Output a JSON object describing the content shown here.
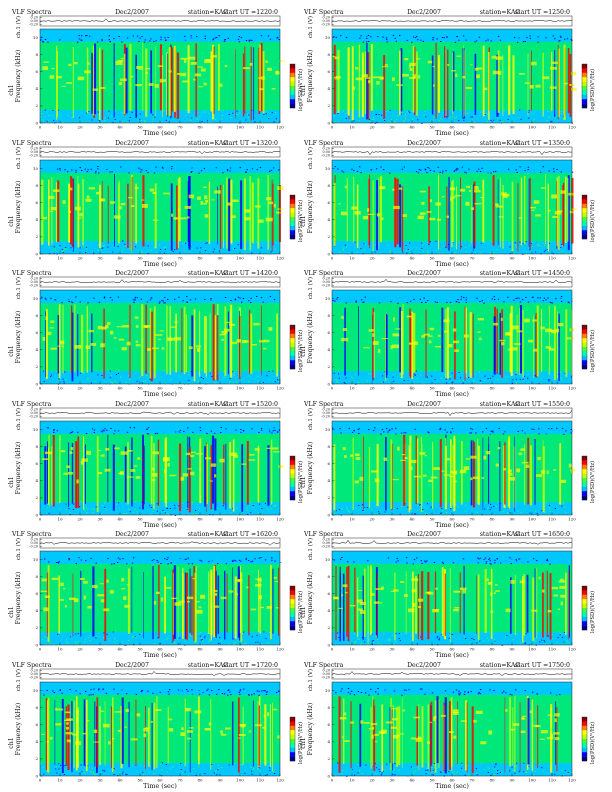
{
  "chart_data": [
    {
      "type": "heatmap",
      "panel_label": "VLF Spectra",
      "date": "Dec2/2007",
      "station": "station=KAG",
      "start_ut": "start UT =1220:0",
      "ch_label": "ch.1 (V)",
      "ch_yticks": [
        "0.20",
        "0.00",
        "-0.20"
      ],
      "ylabel": "Frequency (kHz)",
      "ylabel_prefix": "ch1",
      "yticks": [
        "0",
        "2",
        "4",
        "6",
        "8",
        "10"
      ],
      "ylim": [
        0,
        11
      ],
      "xlabel": "Time (sec)",
      "xticks": [
        "0",
        "10",
        "20",
        "30",
        "40",
        "50",
        "60",
        "70",
        "80",
        "90",
        "100",
        "110",
        "120"
      ],
      "xlim": [
        0,
        120
      ],
      "colorbar_label": "log(PSD)(V²/Hz)"
    },
    {
      "type": "heatmap",
      "panel_label": "VLF Spectra",
      "date": "Dec2/2007",
      "station": "station=KAG",
      "start_ut": "start UT =1250:0",
      "ch_label": "ch.1 (V)",
      "ch_yticks": [
        "0.20",
        "0.00",
        "-0.20"
      ],
      "ylabel": "Frequency (kHz)",
      "ylabel_prefix": "ch1",
      "yticks": [
        "0",
        "2",
        "4",
        "6",
        "8",
        "10"
      ],
      "ylim": [
        0,
        11
      ],
      "xlabel": "Time (sec)",
      "xticks": [
        "0",
        "10",
        "20",
        "30",
        "40",
        "50",
        "60",
        "70",
        "80",
        "90",
        "100",
        "110",
        "120"
      ],
      "xlim": [
        0,
        120
      ],
      "colorbar_label": "log(PSD)(V²/Hz)"
    },
    {
      "type": "heatmap",
      "panel_label": "VLF Spectra",
      "date": "Dec2/2007",
      "station": "station=KAG",
      "start_ut": "start UT =1320:0",
      "ch_label": "ch.1 (V)",
      "ch_yticks": [
        "0.20",
        "0.00",
        "-0.20"
      ],
      "ylabel": "Frequency (kHz)",
      "ylabel_prefix": "ch1",
      "yticks": [
        "0",
        "2",
        "4",
        "6",
        "8",
        "10"
      ],
      "ylim": [
        0,
        11
      ],
      "xlabel": "Time (sec)",
      "xticks": [
        "0",
        "10",
        "20",
        "30",
        "40",
        "50",
        "60",
        "70",
        "80",
        "90",
        "100",
        "110",
        "120"
      ],
      "xlim": [
        0,
        120
      ],
      "colorbar_label": "log(PSD)(V²/Hz)"
    },
    {
      "type": "heatmap",
      "panel_label": "VLF Spectra",
      "date": "Dec2/2007",
      "station": "station=KAG",
      "start_ut": "start UT =1350:0",
      "ch_label": "ch.1 (V)",
      "ch_yticks": [
        "0.20",
        "0.00",
        "-0.20"
      ],
      "ylabel": "Frequency (kHz)",
      "ylabel_prefix": "ch1",
      "yticks": [
        "0",
        "2",
        "4",
        "6",
        "8",
        "10"
      ],
      "ylim": [
        0,
        11
      ],
      "xlabel": "Time (sec)",
      "xticks": [
        "0",
        "10",
        "20",
        "30",
        "40",
        "50",
        "60",
        "70",
        "80",
        "90",
        "100",
        "110",
        "120"
      ],
      "xlim": [
        0,
        120
      ],
      "colorbar_label": "log(PSD)(V²/Hz)"
    },
    {
      "type": "heatmap",
      "panel_label": "VLF Spectra",
      "date": "Dec2/2007",
      "station": "station=KAG",
      "start_ut": "start UT =1420:0",
      "ch_label": "ch.1 (V)",
      "ch_yticks": [
        "0.20",
        "0.00",
        "-0.20"
      ],
      "ylabel": "Frequency (kHz)",
      "ylabel_prefix": "ch1",
      "yticks": [
        "0",
        "2",
        "4",
        "6",
        "8",
        "10"
      ],
      "ylim": [
        0,
        11
      ],
      "xlabel": "Time (sec)",
      "xticks": [
        "0",
        "10",
        "20",
        "30",
        "40",
        "50",
        "60",
        "70",
        "80",
        "90",
        "100",
        "110",
        "120"
      ],
      "xlim": [
        0,
        120
      ],
      "colorbar_label": "log(PSD)(V²/Hz)"
    },
    {
      "type": "heatmap",
      "panel_label": "VLF Spectra",
      "date": "Dec2/2007",
      "station": "station=KAG",
      "start_ut": "start UT =1450:0",
      "ch_label": "ch.1 (V)",
      "ch_yticks": [
        "0.20",
        "0.00",
        "-0.20"
      ],
      "ylabel": "Frequency (kHz)",
      "ylabel_prefix": "ch1",
      "yticks": [
        "0",
        "2",
        "4",
        "6",
        "8",
        "10"
      ],
      "ylim": [
        0,
        11
      ],
      "xlabel": "Time (sec)",
      "xticks": [
        "0",
        "10",
        "20",
        "30",
        "40",
        "50",
        "60",
        "70",
        "80",
        "90",
        "100",
        "110",
        "120"
      ],
      "xlim": [
        0,
        120
      ],
      "colorbar_label": "log(PSD)(V²/Hz)"
    },
    {
      "type": "heatmap",
      "panel_label": "VLF Spectra",
      "date": "Dec2/2007",
      "station": "station=KAG",
      "start_ut": "start UT =1520:0",
      "ch_label": "ch.1 (V)",
      "ch_yticks": [
        "0.20",
        "0.00",
        "-0.20"
      ],
      "ylabel": "Frequency (kHz)",
      "ylabel_prefix": "ch1",
      "yticks": [
        "0",
        "2",
        "4",
        "6",
        "8",
        "10"
      ],
      "ylim": [
        0,
        11
      ],
      "xlabel": "Time (sec)",
      "xticks": [
        "0",
        "10",
        "20",
        "30",
        "40",
        "50",
        "60",
        "70",
        "80",
        "90",
        "100",
        "110",
        "120"
      ],
      "xlim": [
        0,
        120
      ],
      "colorbar_label": "log(PSD)(V²/Hz)"
    },
    {
      "type": "heatmap",
      "panel_label": "VLF Spectra",
      "date": "Dec2/2007",
      "station": "station=KAG",
      "start_ut": "start UT =1550:0",
      "ch_label": "ch.1 (V)",
      "ch_yticks": [
        "0.20",
        "0.00",
        "-0.20"
      ],
      "ylabel": "Frequency (kHz)",
      "ylabel_prefix": "ch1",
      "yticks": [
        "0",
        "2",
        "4",
        "6",
        "8",
        "10"
      ],
      "ylim": [
        0,
        11
      ],
      "xlabel": "Time (sec)",
      "xticks": [
        "0",
        "10",
        "20",
        "30",
        "40",
        "50",
        "60",
        "70",
        "80",
        "90",
        "100",
        "110",
        "120"
      ],
      "xlim": [
        0,
        120
      ],
      "colorbar_label": "log(PSD)(V²/Hz)"
    },
    {
      "type": "heatmap",
      "panel_label": "VLF Spectra",
      "date": "Dec2/2007",
      "station": "station=KAG",
      "start_ut": "start UT =1620:0",
      "ch_label": "ch.1 (V)",
      "ch_yticks": [
        "0.20",
        "0.00",
        "-0.20"
      ],
      "ylabel": "Frequency (kHz)",
      "ylabel_prefix": "ch1",
      "yticks": [
        "0",
        "2",
        "4",
        "6",
        "8",
        "10"
      ],
      "ylim": [
        0,
        11
      ],
      "xlabel": "Time (sec)",
      "xticks": [
        "0",
        "10",
        "20",
        "30",
        "40",
        "50",
        "60",
        "70",
        "80",
        "90",
        "100",
        "110",
        "120"
      ],
      "xlim": [
        0,
        120
      ],
      "colorbar_label": "log(PSD)(V²/Hz)"
    },
    {
      "type": "heatmap",
      "panel_label": "VLF Spectra",
      "date": "Dec2/2007",
      "station": "station=KAG",
      "start_ut": "start UT =1650:0",
      "ch_label": "ch.1 (V)",
      "ch_yticks": [
        "0.20",
        "0.00",
        "-0.20"
      ],
      "ylabel": "Frequency (kHz)",
      "ylabel_prefix": "ch1",
      "yticks": [
        "0",
        "2",
        "4",
        "6",
        "8",
        "10"
      ],
      "ylim": [
        0,
        11
      ],
      "xlabel": "Time (sec)",
      "xticks": [
        "0",
        "10",
        "20",
        "30",
        "40",
        "50",
        "60",
        "70",
        "80",
        "90",
        "100",
        "110",
        "120"
      ],
      "xlim": [
        0,
        120
      ],
      "colorbar_label": "log(PSD)(V²/Hz)"
    },
    {
      "type": "heatmap",
      "panel_label": "VLF Spectra",
      "date": "Dec2/2007",
      "station": "station=KAG",
      "start_ut": "start UT =1720:0",
      "ch_label": "ch.1 (V)",
      "ch_yticks": [
        "0.20",
        "0.00",
        "-0.20"
      ],
      "ylabel": "Frequency (kHz)",
      "ylabel_prefix": "ch1",
      "yticks": [
        "0",
        "2",
        "4",
        "6",
        "8",
        "10"
      ],
      "ylim": [
        0,
        11
      ],
      "xlabel": "Time (sec)",
      "xticks": [
        "0",
        "10",
        "20",
        "30",
        "40",
        "50",
        "60",
        "70",
        "80",
        "90",
        "100",
        "110",
        "120"
      ],
      "xlim": [
        0,
        120
      ],
      "colorbar_label": "log(PSD)(V²/Hz)"
    },
    {
      "type": "heatmap",
      "panel_label": "VLF Spectra",
      "date": "Dec2/2007",
      "station": "station=KAG",
      "start_ut": "start UT =1750:0",
      "ch_label": "ch.1 (V)",
      "ch_yticks": [
        "0.20",
        "0.00",
        "-0.20"
      ],
      "ylabel": "Frequency (kHz)",
      "ylabel_prefix": "ch1",
      "yticks": [
        "0",
        "2",
        "4",
        "6",
        "8",
        "10"
      ],
      "ylim": [
        0,
        11
      ],
      "xlabel": "Time (sec)",
      "xticks": [
        "0",
        "10",
        "20",
        "30",
        "40",
        "50",
        "60",
        "70",
        "80",
        "90",
        "100",
        "110",
        "120"
      ],
      "xlim": [
        0,
        120
      ],
      "colorbar_label": "log(PSD)(V²/Hz)"
    }
  ],
  "colors": {
    "colormap": [
      "#00007f",
      "#0000ff",
      "#00bfff",
      "#00ffb0",
      "#40ff40",
      "#c0ff00",
      "#ffff00",
      "#ff8000",
      "#ff0000",
      "#7f0000"
    ],
    "background": "#00c8ff",
    "band": "#00e87a"
  }
}
